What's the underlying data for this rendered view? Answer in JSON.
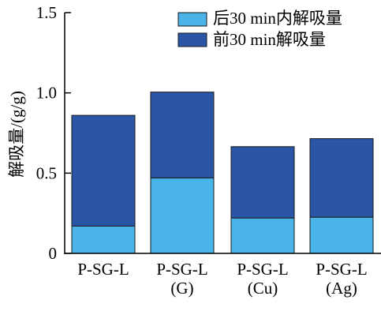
{
  "colors": {
    "top_segment": "#2b55a6",
    "bottom_segment": "#4ab4e8",
    "axis": "#000000",
    "bar_stroke": "#1a1a1a"
  },
  "chart_data": {
    "type": "bar",
    "stacked": true,
    "title": "",
    "xlabel": "",
    "ylabel": "解吸量/(g/g)",
    "ylim": [
      0,
      1.5
    ],
    "yticks": [
      "0",
      "0.5",
      "1.0",
      "1.5"
    ],
    "categories": [
      {
        "line1": "P-SG-L",
        "line2": ""
      },
      {
        "line1": "P-SG-L",
        "line2": "(G)"
      },
      {
        "line1": "P-SG-L",
        "line2": "(Cu)"
      },
      {
        "line1": "P-SG-L",
        "line2": "(Ag)"
      }
    ],
    "series": [
      {
        "name": "后30 min内解吸量",
        "values": [
          0.17,
          0.47,
          0.22,
          0.225
        ]
      },
      {
        "name": "前30 min解吸量",
        "values": [
          0.69,
          0.535,
          0.445,
          0.49
        ]
      }
    ],
    "totals": [
      0.86,
      1.005,
      0.665,
      0.715
    ],
    "grid": false,
    "legend_position": "top-right"
  }
}
